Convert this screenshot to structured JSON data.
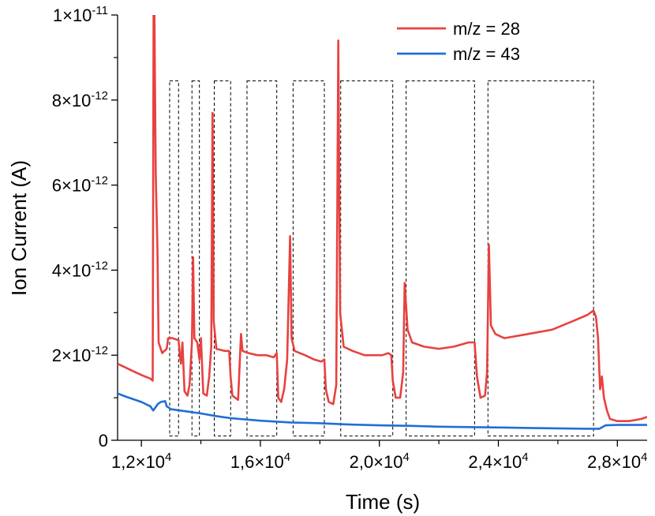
{
  "chart_data": {
    "type": "line",
    "title": "",
    "xlabel": "Time (s)",
    "ylabel": "Ion Current (A)",
    "xlim": [
      11200,
      29000
    ],
    "ylim": [
      0,
      1e-11
    ],
    "x_ticks": [
      {
        "value": 12000,
        "mantissa": "1,2",
        "exponent": "4"
      },
      {
        "value": 16000,
        "mantissa": "1,6",
        "exponent": "4"
      },
      {
        "value": 20000,
        "mantissa": "2,0",
        "exponent": "4"
      },
      {
        "value": 24000,
        "mantissa": "2,4",
        "exponent": "4"
      },
      {
        "value": 28000,
        "mantissa": "2,8",
        "exponent": "4"
      }
    ],
    "y_ticks": [
      {
        "value": 0,
        "mantissa": "0",
        "exponent": ""
      },
      {
        "value": 2e-12,
        "mantissa": "2",
        "exponent": "-12"
      },
      {
        "value": 4e-12,
        "mantissa": "4",
        "exponent": "-12"
      },
      {
        "value": 6e-12,
        "mantissa": "6",
        "exponent": "-12"
      },
      {
        "value": 8e-12,
        "mantissa": "8",
        "exponent": "-12"
      },
      {
        "value": 1e-11,
        "mantissa": "1",
        "exponent": "-11"
      }
    ],
    "legend_position": "top-right",
    "series": [
      {
        "name": "m/z = 28",
        "color": "#e8413f",
        "points": [
          [
            11200,
            1.8e-12
          ],
          [
            11500,
            1.7e-12
          ],
          [
            11800,
            1.6e-12
          ],
          [
            12050,
            1.52e-12
          ],
          [
            12300,
            1.45e-12
          ],
          [
            12380,
            1.4e-12
          ],
          [
            12410,
            1e-11
          ],
          [
            12440,
            1e-11
          ],
          [
            12480,
            6.3e-12
          ],
          [
            12540,
            4.5e-12
          ],
          [
            12580,
            2.3e-12
          ],
          [
            12700,
            2.05e-12
          ],
          [
            12850,
            2.15e-12
          ],
          [
            12900,
            2.4e-12
          ],
          [
            13050,
            2.4e-12
          ],
          [
            13250,
            2.35e-12
          ],
          [
            13300,
            1.95e-12
          ],
          [
            13330,
            1.8e-12
          ],
          [
            13380,
            2.3e-12
          ],
          [
            13450,
            1.15e-12
          ],
          [
            13550,
            1.05e-12
          ],
          [
            13620,
            1.3e-12
          ],
          [
            13700,
            2.3e-12
          ],
          [
            13740,
            4.3e-12
          ],
          [
            13780,
            2.4e-12
          ],
          [
            13880,
            2.3e-12
          ],
          [
            13950,
            1.9e-12
          ],
          [
            14000,
            2.4e-12
          ],
          [
            14080,
            1.1e-12
          ],
          [
            14200,
            1.05e-12
          ],
          [
            14280,
            1.5e-12
          ],
          [
            14350,
            2.2e-12
          ],
          [
            14390,
            7.7e-12
          ],
          [
            14430,
            2.8e-12
          ],
          [
            14520,
            2.15e-12
          ],
          [
            14800,
            2.1e-12
          ],
          [
            14950,
            2.1e-12
          ],
          [
            15000,
            1.5e-12
          ],
          [
            15060,
            1.05e-12
          ],
          [
            15250,
            9.5e-13
          ],
          [
            15350,
            2.5e-12
          ],
          [
            15400,
            2.1e-12
          ],
          [
            15600,
            2.05e-12
          ],
          [
            15900,
            2e-12
          ],
          [
            16200,
            2e-12
          ],
          [
            16450,
            1.95e-12
          ],
          [
            16550,
            2.05e-12
          ],
          [
            16600,
            1e-12
          ],
          [
            16700,
            9e-13
          ],
          [
            16800,
            1.2e-12
          ],
          [
            16900,
            1.9e-12
          ],
          [
            17000,
            4.8e-12
          ],
          [
            17050,
            2.4e-12
          ],
          [
            17150,
            2.1e-12
          ],
          [
            17500,
            2e-12
          ],
          [
            17800,
            1.9e-12
          ],
          [
            18050,
            1.85e-12
          ],
          [
            18150,
            1.9e-12
          ],
          [
            18200,
            1.2e-12
          ],
          [
            18300,
            9e-13
          ],
          [
            18450,
            8.5e-13
          ],
          [
            18550,
            1.3e-12
          ],
          [
            18620,
            9.4e-12
          ],
          [
            18680,
            3e-12
          ],
          [
            18800,
            2.2e-12
          ],
          [
            19100,
            2.1e-12
          ],
          [
            19500,
            2e-12
          ],
          [
            19800,
            2e-12
          ],
          [
            20100,
            2e-12
          ],
          [
            20300,
            2.05e-12
          ],
          [
            20400,
            2e-12
          ],
          [
            20450,
            1.4e-12
          ],
          [
            20550,
            1e-12
          ],
          [
            20700,
            1e-12
          ],
          [
            20800,
            1.6e-12
          ],
          [
            20850,
            3.7e-12
          ],
          [
            20950,
            2.6e-12
          ],
          [
            21100,
            2.3e-12
          ],
          [
            21500,
            2.2e-12
          ],
          [
            22000,
            2.15e-12
          ],
          [
            22500,
            2.2e-12
          ],
          [
            23000,
            2.3e-12
          ],
          [
            23200,
            2.3e-12
          ],
          [
            23280,
            1.5e-12
          ],
          [
            23400,
            1e-12
          ],
          [
            23550,
            1.05e-12
          ],
          [
            23620,
            1.6e-12
          ],
          [
            23680,
            4.6e-12
          ],
          [
            23750,
            2.7e-12
          ],
          [
            23900,
            2.5e-12
          ],
          [
            24200,
            2.4e-12
          ],
          [
            25000,
            2.5e-12
          ],
          [
            25800,
            2.6e-12
          ],
          [
            26500,
            2.8e-12
          ],
          [
            27000,
            2.95e-12
          ],
          [
            27200,
            3.05e-12
          ],
          [
            27280,
            2.9e-12
          ],
          [
            27350,
            2.4e-12
          ],
          [
            27420,
            1.2e-12
          ],
          [
            27480,
            1.5e-12
          ],
          [
            27550,
            1e-12
          ],
          [
            27650,
            7e-13
          ],
          [
            27750,
            5e-13
          ],
          [
            28000,
            4.5e-13
          ],
          [
            28400,
            4.5e-13
          ],
          [
            28800,
            5e-13
          ],
          [
            29000,
            5.5e-13
          ]
        ]
      },
      {
        "name": "m/z = 43",
        "color": "#1f6fd6",
        "points": [
          [
            11200,
            1.1e-12
          ],
          [
            11500,
            1.02e-12
          ],
          [
            12000,
            9e-13
          ],
          [
            12300,
            8e-13
          ],
          [
            12400,
            7e-13
          ],
          [
            12550,
            8.5e-13
          ],
          [
            12650,
            9e-13
          ],
          [
            12800,
            9.2e-13
          ],
          [
            12850,
            8e-13
          ],
          [
            13000,
            7.3e-13
          ],
          [
            13500,
            6.8e-13
          ],
          [
            14000,
            6.3e-13
          ],
          [
            14500,
            5.7e-13
          ],
          [
            15000,
            5.2e-13
          ],
          [
            16000,
            4.6e-13
          ],
          [
            17000,
            4.2e-13
          ],
          [
            18000,
            4e-13
          ],
          [
            19000,
            3.7e-13
          ],
          [
            20000,
            3.5e-13
          ],
          [
            21000,
            3.4e-13
          ],
          [
            22000,
            3.2e-13
          ],
          [
            23000,
            3.1e-13
          ],
          [
            24000,
            3e-13
          ],
          [
            25000,
            2.9e-13
          ],
          [
            26000,
            2.8e-13
          ],
          [
            27000,
            2.7e-13
          ],
          [
            27400,
            2.7e-13
          ],
          [
            27600,
            3.5e-13
          ],
          [
            28000,
            3.6e-13
          ],
          [
            29000,
            3.6e-13
          ]
        ]
      }
    ],
    "regions": [
      {
        "x0": 12950,
        "x1": 13250,
        "y0": 1e-13,
        "y1": 8.45e-12
      },
      {
        "x0": 13700,
        "x1": 13950,
        "y0": 1e-13,
        "y1": 8.45e-12
      },
      {
        "x0": 14450,
        "x1": 15000,
        "y0": 1e-13,
        "y1": 8.45e-12
      },
      {
        "x0": 15550,
        "x1": 16550,
        "y0": 1e-13,
        "y1": 8.45e-12
      },
      {
        "x0": 17100,
        "x1": 18150,
        "y0": 1e-13,
        "y1": 8.45e-12
      },
      {
        "x0": 18700,
        "x1": 20450,
        "y0": 1e-13,
        "y1": 8.45e-12
      },
      {
        "x0": 20900,
        "x1": 23200,
        "y0": 1e-13,
        "y1": 8.45e-12
      },
      {
        "x0": 23650,
        "x1": 27200,
        "y0": 1e-13,
        "y1": 8.45e-12
      }
    ]
  }
}
